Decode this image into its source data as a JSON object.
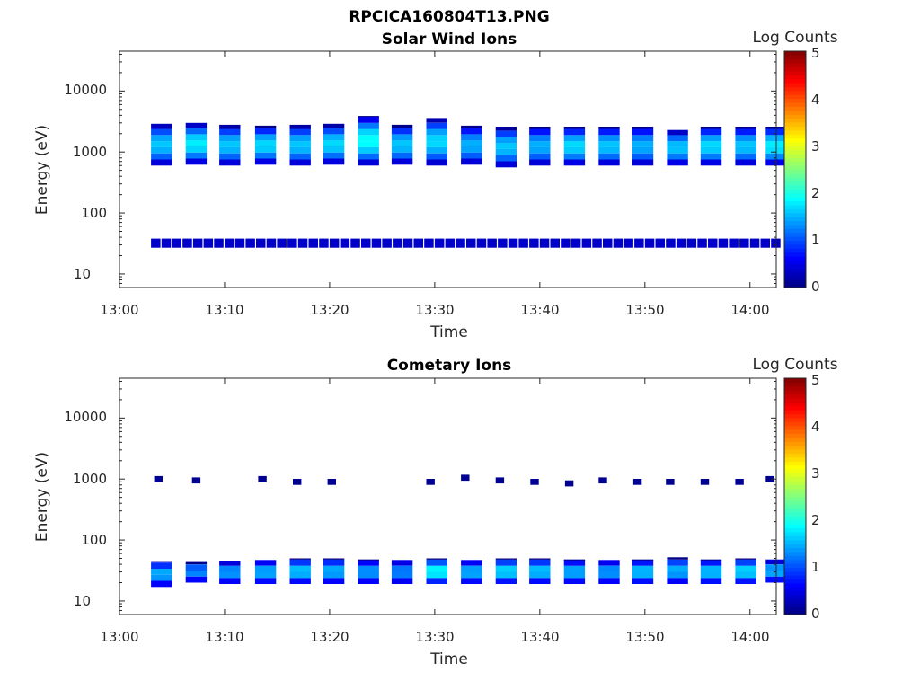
{
  "figure_title": "RPCICA160804T13.PNG",
  "colormap": [
    "#00007f",
    "#0000ff",
    "#007fff",
    "#00ffff",
    "#7fff7f",
    "#ffff00",
    "#ff7f00",
    "#ff0000",
    "#7f0000"
  ],
  "chart_data": [
    {
      "type": "heatmap",
      "title": "Solar Wind Ions",
      "xlabel": "Time",
      "ylabel": "Energy (eV)",
      "colorbar_label": "Log Counts",
      "colorbar_range": [
        0,
        5
      ],
      "colorbar_ticks": [
        "0",
        "1",
        "2",
        "3",
        "4",
        "5"
      ],
      "x_ticks": [
        "13:00",
        "13:10",
        "13:20",
        "13:30",
        "13:40",
        "13:50",
        "14:00"
      ],
      "y_ticks": [
        "10",
        "100",
        "1000",
        "10000"
      ],
      "y_scale": "log",
      "ylim": [
        6,
        45000
      ],
      "xlim_minutes": [
        0,
        62.5
      ],
      "scans": [
        {
          "t": 3.0,
          "e_low": 600,
          "e_high": 2900,
          "peak": 1.6
        },
        {
          "t": 6.3,
          "e_low": 620,
          "e_high": 3000,
          "peak": 1.8
        },
        {
          "t": 9.5,
          "e_low": 600,
          "e_high": 2800,
          "peak": 1.6
        },
        {
          "t": 12.9,
          "e_low": 620,
          "e_high": 2700,
          "peak": 1.7
        },
        {
          "t": 16.2,
          "e_low": 600,
          "e_high": 2800,
          "peak": 1.6
        },
        {
          "t": 19.4,
          "e_low": 620,
          "e_high": 2900,
          "peak": 1.7
        },
        {
          "t": 22.7,
          "e_low": 600,
          "e_high": 3900,
          "peak": 1.9
        },
        {
          "t": 25.9,
          "e_low": 620,
          "e_high": 2800,
          "peak": 1.6
        },
        {
          "t": 29.2,
          "e_low": 600,
          "e_high": 3600,
          "peak": 1.7
        },
        {
          "t": 32.5,
          "e_low": 620,
          "e_high": 2700,
          "peak": 1.5
        },
        {
          "t": 35.8,
          "e_low": 560,
          "e_high": 2600,
          "peak": 1.6
        },
        {
          "t": 39.0,
          "e_low": 600,
          "e_high": 2600,
          "peak": 1.5
        },
        {
          "t": 42.3,
          "e_low": 600,
          "e_high": 2600,
          "peak": 1.7
        },
        {
          "t": 45.6,
          "e_low": 600,
          "e_high": 2600,
          "peak": 1.6
        },
        {
          "t": 48.8,
          "e_low": 600,
          "e_high": 2600,
          "peak": 1.5
        },
        {
          "t": 52.1,
          "e_low": 600,
          "e_high": 2300,
          "peak": 1.6
        },
        {
          "t": 55.3,
          "e_low": 600,
          "e_high": 2600,
          "peak": 1.7
        },
        {
          "t": 58.6,
          "e_low": 600,
          "e_high": 2600,
          "peak": 1.6
        },
        {
          "t": 61.5,
          "e_low": 600,
          "e_high": 2600,
          "peak": 1.8
        }
      ],
      "low_band": {
        "e_low": 27,
        "e_high": 38,
        "level": 0.35
      }
    },
    {
      "type": "heatmap",
      "title": "Cometary Ions",
      "xlabel": "Time",
      "ylabel": "Energy (eV)",
      "colorbar_label": "Log Counts",
      "colorbar_range": [
        0,
        5
      ],
      "colorbar_ticks": [
        "0",
        "1",
        "2",
        "3",
        "4",
        "5"
      ],
      "x_ticks": [
        "13:00",
        "13:10",
        "13:20",
        "13:30",
        "13:40",
        "13:50",
        "14:00"
      ],
      "y_ticks": [
        "10",
        "100",
        "1000",
        "10000"
      ],
      "y_scale": "log",
      "ylim": [
        6,
        45000
      ],
      "xlim_minutes": [
        0,
        62.5
      ],
      "scans": [
        {
          "t": 3.0,
          "e_low": 17,
          "e_high": 45,
          "peak": 1.5
        },
        {
          "t": 6.3,
          "e_low": 20,
          "e_high": 45,
          "peak": 1.3
        },
        {
          "t": 9.5,
          "e_low": 19,
          "e_high": 46,
          "peak": 1.4
        },
        {
          "t": 12.9,
          "e_low": 19,
          "e_high": 47,
          "peak": 1.5
        },
        {
          "t": 16.2,
          "e_low": 19,
          "e_high": 50,
          "peak": 1.6
        },
        {
          "t": 19.4,
          "e_low": 19,
          "e_high": 50,
          "peak": 1.5
        },
        {
          "t": 22.7,
          "e_low": 19,
          "e_high": 48,
          "peak": 1.4
        },
        {
          "t": 25.9,
          "e_low": 19,
          "e_high": 47,
          "peak": 1.3
        },
        {
          "t": 29.2,
          "e_low": 19,
          "e_high": 50,
          "peak": 1.9
        },
        {
          "t": 32.5,
          "e_low": 19,
          "e_high": 47,
          "peak": 1.5
        },
        {
          "t": 35.8,
          "e_low": 19,
          "e_high": 50,
          "peak": 1.7
        },
        {
          "t": 39.0,
          "e_low": 19,
          "e_high": 50,
          "peak": 1.6
        },
        {
          "t": 42.3,
          "e_low": 19,
          "e_high": 48,
          "peak": 1.5
        },
        {
          "t": 45.6,
          "e_low": 19,
          "e_high": 47,
          "peak": 1.4
        },
        {
          "t": 48.8,
          "e_low": 19,
          "e_high": 48,
          "peak": 1.6
        },
        {
          "t": 52.1,
          "e_low": 19,
          "e_high": 52,
          "peak": 1.5
        },
        {
          "t": 55.3,
          "e_low": 19,
          "e_high": 48,
          "peak": 1.6
        },
        {
          "t": 58.6,
          "e_low": 19,
          "e_high": 50,
          "peak": 1.7
        },
        {
          "t": 61.5,
          "e_low": 20,
          "e_high": 48,
          "peak": 1.5
        }
      ],
      "mid_dots": [
        {
          "t": 3.3,
          "e": 1000
        },
        {
          "t": 6.9,
          "e": 950
        },
        {
          "t": 13.2,
          "e": 1000
        },
        {
          "t": 16.5,
          "e": 900
        },
        {
          "t": 19.8,
          "e": 900
        },
        {
          "t": 29.2,
          "e": 900
        },
        {
          "t": 32.5,
          "e": 1050
        },
        {
          "t": 35.8,
          "e": 950
        },
        {
          "t": 39.1,
          "e": 900
        },
        {
          "t": 42.4,
          "e": 850
        },
        {
          "t": 45.6,
          "e": 950
        },
        {
          "t": 48.9,
          "e": 900
        },
        {
          "t": 52.0,
          "e": 900
        },
        {
          "t": 55.3,
          "e": 900
        },
        {
          "t": 58.6,
          "e": 900
        },
        {
          "t": 61.5,
          "e": 1000
        }
      ]
    }
  ]
}
